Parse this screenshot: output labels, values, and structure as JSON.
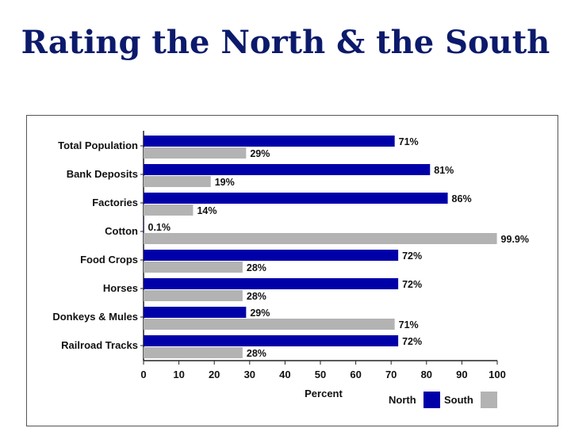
{
  "slide": {
    "title": "Rating the North & the South"
  },
  "chart_data": {
    "type": "bar",
    "orientation": "horizontal",
    "categories": [
      "Total Population",
      "Bank Deposits",
      "Factories",
      "Cotton",
      "Food Crops",
      "Horses",
      "Donkeys & Mules",
      "Railroad Tracks"
    ],
    "series": [
      {
        "name": "North",
        "color": "#0000a8",
        "values": [
          71,
          81,
          86,
          0.1,
          72,
          72,
          29,
          72
        ],
        "labels": [
          "71%",
          "81%",
          "86%",
          "0.1%",
          "72%",
          "72%",
          "29%",
          "72%"
        ]
      },
      {
        "name": "South",
        "color": "#b3b3b3",
        "values": [
          29,
          19,
          14,
          99.9,
          28,
          28,
          71,
          28
        ],
        "labels": [
          "29%",
          "19%",
          "14%",
          "99.9%",
          "28%",
          "28%",
          "71%",
          "28%"
        ]
      }
    ],
    "xlabel": "Percent",
    "ylabel": "",
    "xlim": [
      0,
      100
    ],
    "xticks": [
      "0",
      "10",
      "20",
      "30",
      "40",
      "50",
      "60",
      "70",
      "80",
      "90",
      "100"
    ],
    "grid": false,
    "legend": "bottom-right"
  }
}
